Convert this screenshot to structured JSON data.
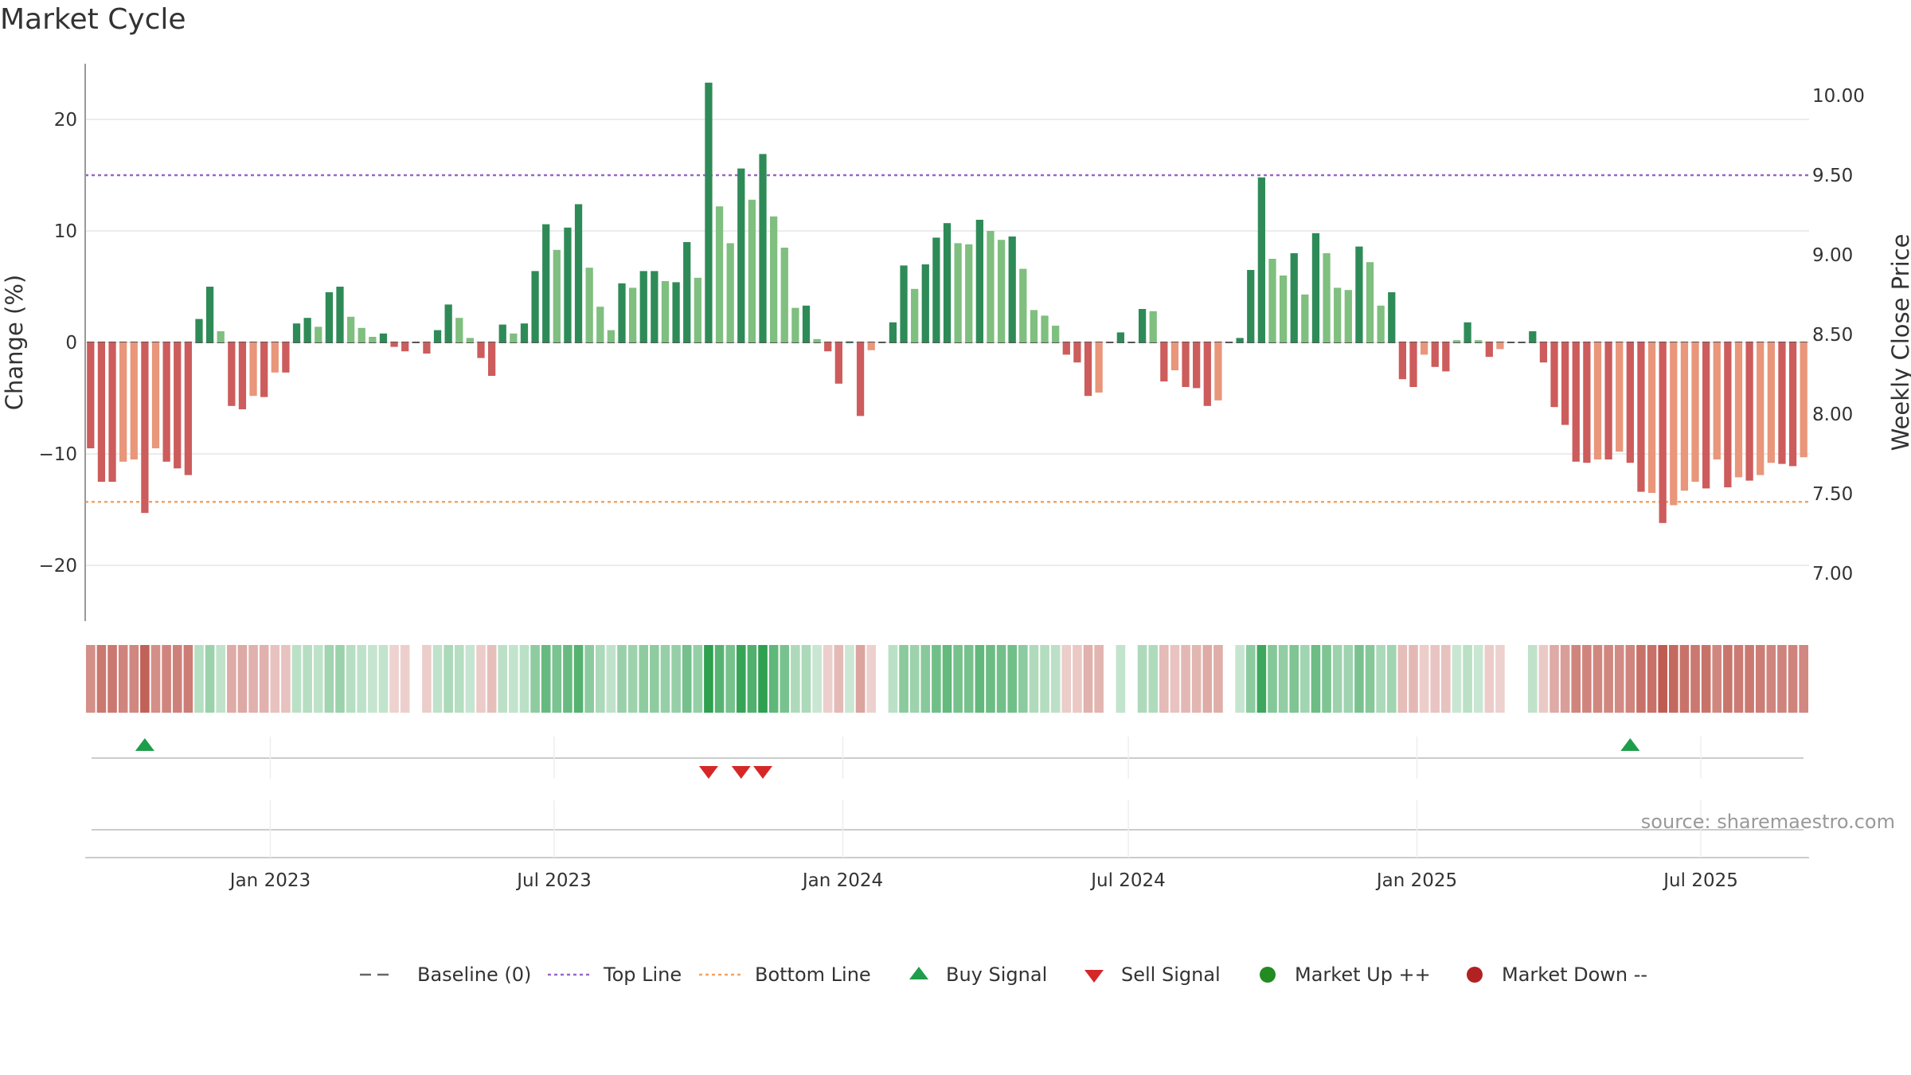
{
  "title": "Market Cycle",
  "source": "source: sharemaestro.com",
  "colors": {
    "up_strong": "#2e8b57",
    "up_weak": "#7fbf7f",
    "down_strong": "#cd5c5c",
    "down_weak": "#e9967a",
    "top_line": "#9966cc",
    "bottom_line": "#f4a460",
    "buy": "#1e9e4a",
    "sell": "#d62728",
    "market_up": "#228b22",
    "market_down": "#b22222"
  },
  "chart_data": {
    "type": "bar",
    "ylabel": "Change (%)",
    "y2label": "Weekly Close Price",
    "ylim": [
      -25,
      25
    ],
    "y_ticks": [
      20,
      10,
      0,
      -10,
      -20
    ],
    "y_tick_labels": [
      "20",
      "10",
      "0",
      "−10",
      "−20"
    ],
    "y2lim": [
      6.7,
      10.2
    ],
    "y2_ticks": [
      10.0,
      9.5,
      9.0,
      8.5,
      8.0,
      7.5,
      7.0
    ],
    "y2_tick_labels": [
      "10.00",
      "9.50",
      "9.00",
      "8.50",
      "8.00",
      "7.50",
      "7.00"
    ],
    "x_start": "2022-09-05",
    "x_end": "2025-09-08",
    "x_ticks": [
      "2023-01-01",
      "2023-07-01",
      "2024-01-01",
      "2024-07-01",
      "2025-01-01",
      "2025-07-01"
    ],
    "x_tick_labels": [
      "Jan 2023",
      "Jul 2023",
      "Jan 2024",
      "Jul 2024",
      "Jan 2025",
      "Jul 2025"
    ],
    "baseline": 0,
    "top_line": 15,
    "bottom_line": -14.3,
    "series": [
      {
        "values": [
          -9.5,
          -12.5,
          -12.5,
          -10.7,
          -10.5,
          -15.3,
          -9.5,
          -10.7,
          -11.3,
          -11.9,
          2.1,
          5.0,
          1.0,
          -5.7,
          -6.0,
          -4.8,
          -4.9,
          -2.7,
          -2.7,
          1.7,
          2.2,
          1.4,
          4.5,
          5.0,
          2.3,
          1.3,
          0.5,
          0.8,
          -0.4,
          -0.8,
          0,
          -1.0,
          1.1,
          3.4,
          2.2,
          0.4,
          -1.4,
          -3.0,
          1.6,
          0.8,
          1.7,
          6.4,
          10.6,
          8.3,
          10.3,
          12.4,
          6.7,
          3.2,
          1.1,
          5.3,
          4.9,
          6.4,
          6.4,
          5.5,
          5.4,
          9.0,
          5.8,
          23.3,
          12.2,
          8.9,
          15.6,
          12.8,
          16.9,
          11.3,
          8.5,
          3.1,
          3.3,
          0.3,
          -0.8,
          -3.7,
          0.1,
          -6.6,
          -0.7,
          0,
          1.8,
          6.9,
          4.8,
          7.0,
          9.4,
          10.7,
          8.9,
          8.8,
          11.0,
          10.0,
          9.2,
          9.5,
          6.6,
          2.9,
          2.4,
          1.5,
          -1.1,
          -1.8,
          -4.8,
          -4.5,
          0,
          0.9,
          0,
          3.0,
          2.8,
          -3.5,
          -2.5,
          -4.0,
          -4.1,
          -5.7,
          -5.2,
          0,
          0.4,
          6.5,
          14.8,
          7.5,
          6.0,
          8.0,
          4.3,
          9.8,
          8.0,
          4.9,
          4.7,
          8.6,
          7.2,
          3.3,
          4.5,
          -3.3,
          -4.0,
          -1.1,
          -2.2,
          -2.6,
          0.2,
          1.8,
          0.2,
          -1.3,
          -0.6,
          0,
          0,
          1.0,
          -1.8,
          -5.8,
          -7.4,
          -10.7,
          -10.8,
          -10.5,
          -10.5,
          -9.8,
          -10.8,
          -13.4,
          -13.5,
          -16.2,
          -14.6,
          -13.3,
          -12.5,
          -13.1,
          -10.5,
          -13.0,
          -12.1,
          -12.4,
          -11.9,
          -10.8,
          -10.9,
          -11.1,
          -10.3
        ],
        "colors": [
          "down_strong",
          "down_strong",
          "down_strong",
          "down_weak",
          "down_weak",
          "down_strong",
          "down_weak",
          "down_strong",
          "down_strong",
          "down_strong",
          "up_strong",
          "up_strong",
          "up_weak",
          "down_strong",
          "down_strong",
          "down_weak",
          "down_strong",
          "down_weak",
          "down_strong",
          "up_strong",
          "up_strong",
          "up_weak",
          "up_strong",
          "up_strong",
          "up_weak",
          "up_weak",
          "up_weak",
          "up_strong",
          "down_strong",
          "down_strong",
          "down_strong",
          "down_strong",
          "up_strong",
          "up_strong",
          "up_weak",
          "up_weak",
          "down_strong",
          "down_strong",
          "up_strong",
          "up_weak",
          "up_strong",
          "up_strong",
          "up_strong",
          "up_weak",
          "up_strong",
          "up_strong",
          "up_weak",
          "up_weak",
          "up_weak",
          "up_strong",
          "up_weak",
          "up_strong",
          "up_strong",
          "up_weak",
          "up_strong",
          "up_strong",
          "up_weak",
          "up_strong",
          "up_weak",
          "up_weak",
          "up_strong",
          "up_weak",
          "up_strong",
          "up_weak",
          "up_weak",
          "up_weak",
          "up_strong",
          "up_weak",
          "down_strong",
          "down_strong",
          "up_strong",
          "down_strong",
          "down_weak",
          "up_strong",
          "up_strong",
          "up_strong",
          "up_weak",
          "up_strong",
          "up_strong",
          "up_strong",
          "up_weak",
          "up_weak",
          "up_strong",
          "up_weak",
          "up_weak",
          "up_strong",
          "up_weak",
          "up_weak",
          "up_weak",
          "up_weak",
          "down_strong",
          "down_strong",
          "down_strong",
          "down_weak",
          "up_strong",
          "up_strong",
          "up_strong",
          "up_strong",
          "up_weak",
          "down_strong",
          "down_weak",
          "down_strong",
          "down_strong",
          "down_strong",
          "down_weak",
          "up_strong",
          "up_strong",
          "up_strong",
          "up_strong",
          "up_weak",
          "up_weak",
          "up_strong",
          "up_weak",
          "up_strong",
          "up_weak",
          "up_weak",
          "up_weak",
          "up_strong",
          "up_weak",
          "up_weak",
          "up_strong",
          "down_strong",
          "down_strong",
          "down_weak",
          "down_strong",
          "down_strong",
          "up_weak",
          "up_strong",
          "up_weak",
          "down_strong",
          "down_weak",
          "down_strong",
          "down_strong",
          "up_strong",
          "down_strong",
          "down_strong",
          "down_strong",
          "down_strong",
          "down_strong",
          "down_weak",
          "down_strong",
          "down_weak",
          "down_strong",
          "down_strong",
          "down_weak",
          "down_strong",
          "down_weak",
          "down_weak",
          "down_weak",
          "down_strong",
          "down_weak",
          "down_strong",
          "down_weak",
          "down_strong",
          "down_weak",
          "down_weak",
          "down_strong",
          "down_strong",
          "down_weak"
        ]
      }
    ],
    "heat_strip": {
      "description_free": true,
      "levels": []
    },
    "buy_signals": [
      {
        "bar_index": 5
      },
      {
        "bar_index": 142
      }
    ],
    "sell_signals": [
      {
        "bar_index": 57
      },
      {
        "bar_index": 60
      },
      {
        "bar_index": 62
      }
    ],
    "legend_position": "bottom",
    "legend": [
      {
        "key": "baseline",
        "label": "Baseline (0)"
      },
      {
        "key": "top",
        "label": "Top Line"
      },
      {
        "key": "bottom",
        "label": "Bottom Line"
      },
      {
        "key": "buy",
        "label": "Buy Signal"
      },
      {
        "key": "sell",
        "label": "Sell Signal"
      },
      {
        "key": "mup",
        "label": "Market Up ++"
      },
      {
        "key": "mdown",
        "label": "Market Down --"
      }
    ]
  }
}
